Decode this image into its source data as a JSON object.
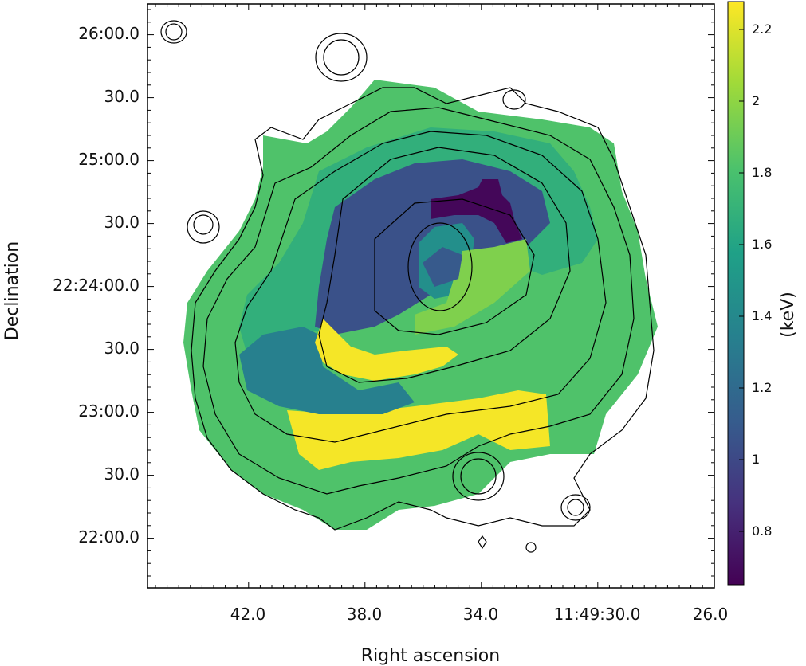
{
  "chart_data": {
    "type": "heatmap",
    "xlabel": "Right ascension",
    "ylabel": "Declination",
    "x_ticks": [
      "42.0",
      "38.0",
      "34.0",
      "11:49:30.0",
      "26.0"
    ],
    "y_ticks": [
      "26:00.0",
      "30.0",
      "25:00.0",
      "30.0",
      "22:24:00.0",
      "30.0",
      "23:00.0",
      "30.0",
      "22:00.0"
    ],
    "colorbar": {
      "label": "(keV)",
      "ticks": [
        "0.8",
        "1",
        "1.2",
        "1.4",
        "1.6",
        "1.8",
        "2",
        "2.2"
      ],
      "range": [
        0.65,
        2.27
      ],
      "colormap": "viridis"
    },
    "regions": [
      {
        "value": 1.82
      },
      {
        "value": 1.68
      },
      {
        "value": 2.25
      },
      {
        "value": 1.35
      },
      {
        "value": 1.05
      },
      {
        "value": 1.45
      },
      {
        "value": 1.95
      },
      {
        "value": 0.68
      },
      {
        "value": 1.1
      }
    ],
    "contour_levels": 6,
    "grid": false
  }
}
